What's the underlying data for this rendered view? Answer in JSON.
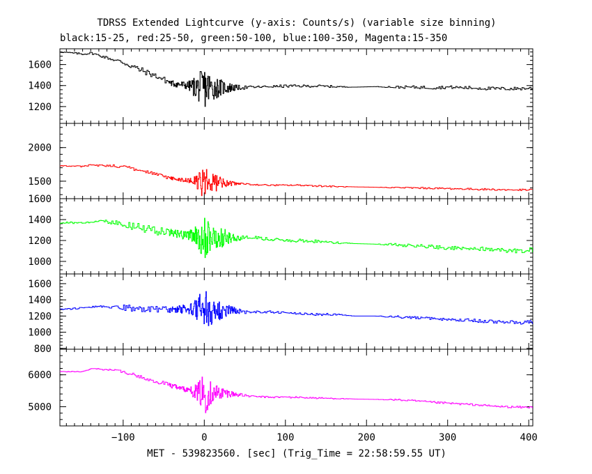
{
  "chart_data": {
    "type": "line",
    "title": "TDRSS Extended Lightcurve (y-axis: Counts/s) (variable size binning)",
    "subtitle": "black:15-25, red:25-50, green:50-100, blue:100-350, Magenta:15-350",
    "xlabel": "MET - 539823560. [sec] (Trig_Time = 22:58:59.55 UT)",
    "ylabel": "",
    "xlim": [
      -178,
      405
    ],
    "x_ticks": [
      -100,
      0,
      100,
      200,
      300,
      400
    ],
    "x_tick_labels": [
      "−100",
      "0",
      "100",
      "200",
      "300",
      "400"
    ],
    "grid": false,
    "legend": "none",
    "panels": [
      {
        "name": "black",
        "color": "#000000",
        "ylim": [
          1040,
          1750
        ],
        "y_ticks": [
          1200,
          1400,
          1600
        ],
        "y_tick_labels": [
          "1200",
          "1400",
          "1600"
        ],
        "x": [
          -178,
          -150,
          -140,
          -110,
          -100,
          -80,
          -60,
          -40,
          -20,
          -8,
          0,
          8,
          20,
          30,
          40,
          60,
          80,
          100,
          120,
          140,
          160,
          185,
          210,
          235,
          260,
          280,
          300,
          320,
          340,
          360,
          380,
          405
        ],
        "y": [
          1720,
          1700,
          1710,
          1640,
          1620,
          1550,
          1490,
          1420,
          1400,
          1380,
          1380,
          1380,
          1380,
          1380,
          1380,
          1385,
          1390,
          1395,
          1395,
          1395,
          1390,
          1385,
          1390,
          1385,
          1385,
          1380,
          1385,
          1380,
          1375,
          1370,
          1370,
          1375
        ],
        "noise": [
          5,
          10,
          10,
          15,
          30,
          30,
          25,
          30,
          40,
          130,
          200,
          130,
          80,
          50,
          25,
          12,
          10,
          14,
          12,
          12,
          10,
          0,
          0,
          12,
          14,
          16,
          14,
          16,
          16,
          16,
          16,
          16
        ]
      },
      {
        "name": "red",
        "color": "#ff0000",
        "ylim": [
          1240,
          2360
        ],
        "y_ticks": [
          1500,
          2000
        ],
        "y_tick_labels": [
          "1500",
          "2000"
        ],
        "x": [
          -178,
          -150,
          -140,
          -120,
          -100,
          -80,
          -60,
          -40,
          -20,
          -8,
          0,
          8,
          20,
          30,
          40,
          60,
          80,
          100,
          120,
          140,
          160,
          185,
          210,
          235,
          260,
          280,
          300,
          320,
          340,
          360,
          380,
          405
        ],
        "y": [
          1730,
          1720,
          1740,
          1730,
          1720,
          1660,
          1600,
          1540,
          1510,
          1490,
          1470,
          1470,
          1480,
          1470,
          1460,
          1450,
          1440,
          1440,
          1440,
          1430,
          1420,
          1415,
          1410,
          1405,
          1400,
          1395,
          1390,
          1385,
          1380,
          1375,
          1370,
          1370
        ],
        "noise": [
          6,
          10,
          10,
          15,
          30,
          25,
          25,
          25,
          30,
          120,
          300,
          160,
          90,
          40,
          25,
          12,
          10,
          10,
          12,
          12,
          10,
          0,
          0,
          10,
          12,
          12,
          12,
          12,
          14,
          14,
          12,
          14
        ],
        "clip_y": [
          1370,
          1360,
          1370,
          1360,
          1370
        ]
      },
      {
        "name": "green",
        "color": "#00ff00",
        "ylim": [
          880,
          1600
        ],
        "y_ticks": [
          1000,
          1200,
          1400,
          1600
        ],
        "y_tick_labels": [
          "1000",
          "1200",
          "1400",
          "1600"
        ],
        "x": [
          -178,
          -150,
          -130,
          -110,
          -100,
          -80,
          -60,
          -40,
          -20,
          -8,
          0,
          8,
          20,
          30,
          40,
          60,
          80,
          100,
          120,
          140,
          160,
          185,
          210,
          235,
          260,
          280,
          300,
          320,
          340,
          360,
          380,
          405
        ],
        "y": [
          1370,
          1370,
          1390,
          1370,
          1360,
          1320,
          1290,
          1270,
          1250,
          1230,
          1220,
          1220,
          1230,
          1230,
          1220,
          1230,
          1210,
          1200,
          1200,
          1190,
          1180,
          1170,
          1165,
          1160,
          1150,
          1140,
          1130,
          1125,
          1120,
          1110,
          1100,
          1110
        ],
        "noise": [
          8,
          10,
          10,
          20,
          40,
          40,
          40,
          40,
          45,
          120,
          200,
          130,
          100,
          60,
          30,
          15,
          15,
          15,
          15,
          15,
          12,
          0,
          0,
          15,
          15,
          20,
          20,
          20,
          20,
          20,
          20,
          25
        ]
      },
      {
        "name": "blue",
        "color": "#0000ff",
        "ylim": [
          790,
          1720
        ],
        "y_ticks": [
          800,
          1000,
          1200,
          1400,
          1600
        ],
        "y_tick_labels": [
          "800",
          "1000",
          "1200",
          "1400",
          "1600"
        ],
        "x": [
          -178,
          -150,
          -130,
          -110,
          -100,
          -80,
          -60,
          -40,
          -20,
          -8,
          0,
          8,
          20,
          30,
          40,
          60,
          80,
          100,
          120,
          140,
          160,
          185,
          210,
          235,
          260,
          280,
          300,
          320,
          340,
          360,
          380,
          405
        ],
        "y": [
          1280,
          1300,
          1320,
          1310,
          1300,
          1290,
          1280,
          1280,
          1290,
          1280,
          1260,
          1260,
          1270,
          1270,
          1260,
          1250,
          1250,
          1240,
          1230,
          1220,
          1220,
          1200,
          1200,
          1190,
          1180,
          1170,
          1160,
          1150,
          1140,
          1130,
          1120,
          1120
        ],
        "noise": [
          8,
          10,
          10,
          20,
          40,
          40,
          40,
          40,
          60,
          160,
          300,
          170,
          110,
          70,
          35,
          15,
          15,
          15,
          15,
          15,
          12,
          0,
          0,
          15,
          15,
          18,
          18,
          20,
          20,
          25,
          25,
          25
        ],
        "clip_y": [
          1370,
          1380,
          1390,
          1400,
          1380
        ]
      },
      {
        "name": "magenta",
        "color": "#ff00ff",
        "ylim": [
          4400,
          6800
        ],
        "y_ticks": [
          5000,
          6000
        ],
        "y_tick_labels": [
          "5000",
          "6000"
        ],
        "x": [
          -178,
          -150,
          -140,
          -120,
          -100,
          -80,
          -60,
          -40,
          -20,
          -8,
          0,
          8,
          20,
          30,
          40,
          60,
          80,
          100,
          120,
          140,
          160,
          185,
          210,
          235,
          260,
          280,
          300,
          320,
          340,
          360,
          380,
          405
        ],
        "y": [
          6100,
          6100,
          6200,
          6160,
          6100,
          5950,
          5800,
          5650,
          5520,
          5450,
          5430,
          5430,
          5440,
          5420,
          5380,
          5320,
          5300,
          5300,
          5290,
          5270,
          5260,
          5240,
          5230,
          5220,
          5180,
          5140,
          5110,
          5080,
          5050,
          5010,
          4990,
          4980
        ],
        "noise": [
          10,
          15,
          15,
          30,
          60,
          60,
          60,
          70,
          80,
          300,
          700,
          360,
          200,
          120,
          60,
          25,
          25,
          30,
          25,
          25,
          20,
          0,
          0,
          25,
          30,
          30,
          30,
          30,
          30,
          30,
          30,
          30
        ]
      }
    ]
  }
}
